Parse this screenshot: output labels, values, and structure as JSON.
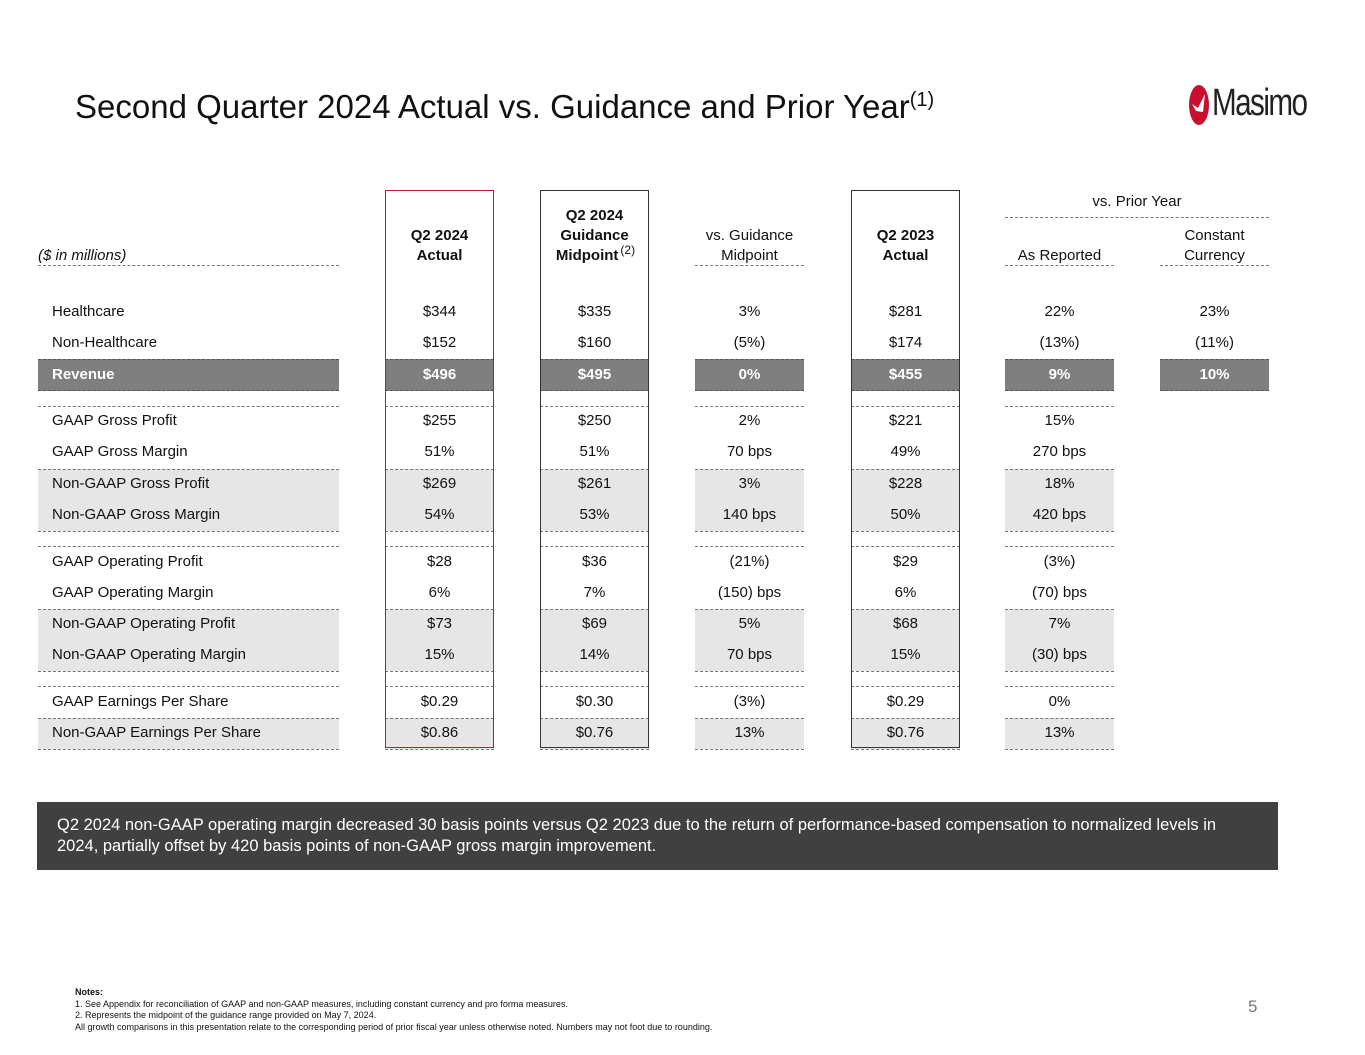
{
  "title": "Second Quarter 2024 Actual vs. Guidance and Prior Year",
  "title_note": "(1)",
  "logo": {
    "text": "Masimo",
    "icon": "masimo-logo-icon",
    "color": "#c8102e"
  },
  "table": {
    "unit_label": "($ in millions)",
    "group_header": "vs. Prior Year",
    "headers": {
      "q2_2024_actual": [
        "Q2 2024",
        "Actual"
      ],
      "guidance": [
        "Q2 2024",
        "Guidance",
        "Midpoint"
      ],
      "guidance_note": "(2)",
      "vs_guidance": [
        "vs. Guidance",
        "Midpoint"
      ],
      "q2_2023_actual": [
        "Q2 2023",
        "Actual"
      ],
      "as_reported": "As Reported",
      "constant_currency": [
        "Constant",
        "Currency"
      ]
    },
    "rows": [
      {
        "label": "Healthcare",
        "cells": [
          "$344",
          "$335",
          "3%",
          "$281",
          "22%",
          "23%"
        ]
      },
      {
        "label": "Non-Healthcare",
        "cells": [
          "$152",
          "$160",
          "(5%)",
          "$174",
          "(13%)",
          "(11%)"
        ]
      },
      {
        "label": "Revenue",
        "cells": [
          "$496",
          "$495",
          "0%",
          "$455",
          "9%",
          "10%"
        ]
      },
      {
        "label": "GAAP Gross Profit",
        "cells": [
          "$255",
          "$250",
          "2%",
          "$221",
          "15%",
          ""
        ]
      },
      {
        "label": "GAAP Gross Margin",
        "cells": [
          "51%",
          "51%",
          "70 bps",
          "49%",
          "270 bps",
          ""
        ]
      },
      {
        "label": "Non-GAAP Gross Profit",
        "cells": [
          "$269",
          "$261",
          "3%",
          "$228",
          "18%",
          ""
        ]
      },
      {
        "label": "Non-GAAP Gross Margin",
        "cells": [
          "54%",
          "53%",
          "140 bps",
          "50%",
          "420 bps",
          ""
        ]
      },
      {
        "label": "GAAP Operating Profit",
        "cells": [
          "$28",
          "$36",
          "(21%)",
          "$29",
          "(3%)",
          ""
        ]
      },
      {
        "label": "GAAP Operating Margin",
        "cells": [
          "6%",
          "7%",
          "(150) bps",
          "6%",
          "(70) bps",
          ""
        ]
      },
      {
        "label": "Non-GAAP Operating Profit",
        "cells": [
          "$73",
          "$69",
          "5%",
          "$68",
          "7%",
          ""
        ]
      },
      {
        "label": "Non-GAAP Operating Margin",
        "cells": [
          "15%",
          "14%",
          "70 bps",
          "15%",
          "(30) bps",
          ""
        ]
      },
      {
        "label": "GAAP Earnings Per Share",
        "cells": [
          "$0.29",
          "$0.30",
          "(3%)",
          "$0.29",
          "0%",
          ""
        ]
      },
      {
        "label": "Non-GAAP Earnings Per Share",
        "cells": [
          "$0.86",
          "$0.76",
          "13%",
          "$0.76",
          "13%",
          ""
        ]
      }
    ]
  },
  "callout": "Q2 2024 non-GAAP operating margin decreased 30 basis points versus Q2 2023 due to the return of performance-based compensation to normalized levels in 2024, partially offset by 420 basis points of non-GAAP gross margin improvement.",
  "notes": {
    "heading": "Notes:",
    "items": [
      "1.  See Appendix for reconciliation of GAAP and non-GAAP measures, including constant currency and pro forma measures.",
      "2.  Represents the midpoint of the guidance range provided on May 7, 2024.",
      "All growth comparisons in this presentation relate to the corresponding period of prior fiscal year unless otherwise noted.  Numbers may not foot due to rounding."
    ]
  },
  "page_number": "5",
  "colors": {
    "actual_border": "#b22222",
    "revenue_bar": "#7f7f7f",
    "shade": "#e6e6e6",
    "callout_bg": "#404040"
  }
}
